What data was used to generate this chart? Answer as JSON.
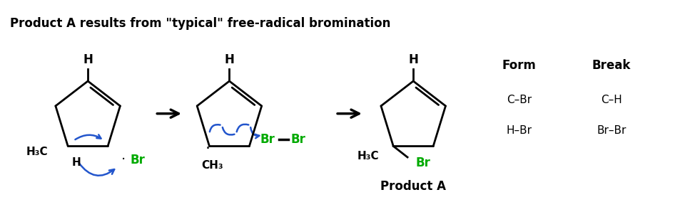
{
  "title": "Product A results from \"typical\" free-radical bromination",
  "title_fontsize": 12,
  "title_fontweight": "bold",
  "bg_color": "#ffffff",
  "black": "#000000",
  "green": "#00aa00",
  "blue": "#2255cc",
  "fig_width": 9.74,
  "fig_height": 2.98,
  "dpi": 100,
  "form_label": "Form",
  "break_label": "Break",
  "form_items": [
    "C–Br",
    "H–Br"
  ],
  "break_items": [
    "C–H",
    "Br–Br"
  ],
  "product_a_label": "Product A"
}
